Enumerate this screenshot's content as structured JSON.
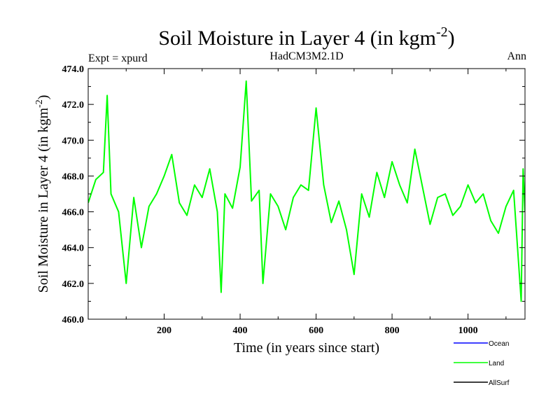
{
  "chart_data": {
    "type": "line",
    "title": "Soil Moisture in Layer 4 (in kgm",
    "title_superscript": "-2",
    "title_suffix": ")",
    "subtitle_left": "Expt = xpurd",
    "subtitle_center": "HadCM3M2.1D",
    "subtitle_right": "Ann",
    "xlabel": "Time (in years since start)",
    "ylabel": "Soil Moisture in Layer 4 (in kgm",
    "ylabel_superscript": "-2",
    "ylabel_suffix": ")",
    "xlim": [
      0,
      1150
    ],
    "ylim": [
      460.0,
      474.0
    ],
    "x_ticks": [
      200,
      400,
      600,
      800,
      1000
    ],
    "x_tick_labels": [
      "200",
      "400",
      "600",
      "800",
      "1000"
    ],
    "y_ticks": [
      460,
      462,
      464,
      466,
      468,
      470,
      472,
      474
    ],
    "y_tick_labels": [
      "460.0",
      "462.0",
      "464.0",
      "466.0",
      "468.0",
      "470.0",
      "472.0",
      "474.0"
    ],
    "grid": false,
    "legend_position": "bottom-right",
    "series": [
      {
        "name": "Ocean",
        "color": "#0000ff",
        "values": []
      },
      {
        "name": "Land",
        "color": "#00ff00",
        "x": [
          0,
          20,
          40,
          50,
          60,
          80,
          100,
          120,
          140,
          160,
          180,
          200,
          220,
          240,
          260,
          280,
          300,
          320,
          340,
          350,
          360,
          380,
          400,
          416,
          430,
          450,
          460,
          480,
          500,
          520,
          540,
          560,
          580,
          600,
          620,
          640,
          660,
          680,
          700,
          720,
          740,
          760,
          780,
          800,
          820,
          840,
          860,
          880,
          900,
          920,
          940,
          960,
          980,
          1000,
          1020,
          1040,
          1060,
          1080,
          1100,
          1120,
          1140,
          1145,
          1150
        ],
        "values": [
          466.5,
          467.8,
          468.2,
          472.5,
          467.0,
          466.0,
          462.0,
          466.8,
          464.0,
          466.3,
          467.0,
          468.0,
          469.2,
          466.5,
          465.8,
          467.5,
          466.8,
          468.4,
          466.0,
          461.5,
          467.0,
          466.2,
          468.5,
          473.3,
          466.6,
          467.2,
          462.0,
          467.0,
          466.3,
          465.0,
          466.8,
          467.5,
          467.2,
          471.8,
          467.5,
          465.4,
          466.6,
          465.0,
          462.5,
          467.0,
          465.7,
          468.2,
          466.8,
          468.8,
          467.5,
          466.5,
          469.5,
          467.4,
          465.3,
          466.8,
          467.0,
          465.8,
          466.3,
          467.5,
          466.5,
          467.0,
          465.5,
          464.8,
          466.3,
          467.2,
          461.0,
          468.4,
          466.0
        ]
      },
      {
        "name": "AllSurf",
        "color": "#000000",
        "values": []
      }
    ]
  }
}
